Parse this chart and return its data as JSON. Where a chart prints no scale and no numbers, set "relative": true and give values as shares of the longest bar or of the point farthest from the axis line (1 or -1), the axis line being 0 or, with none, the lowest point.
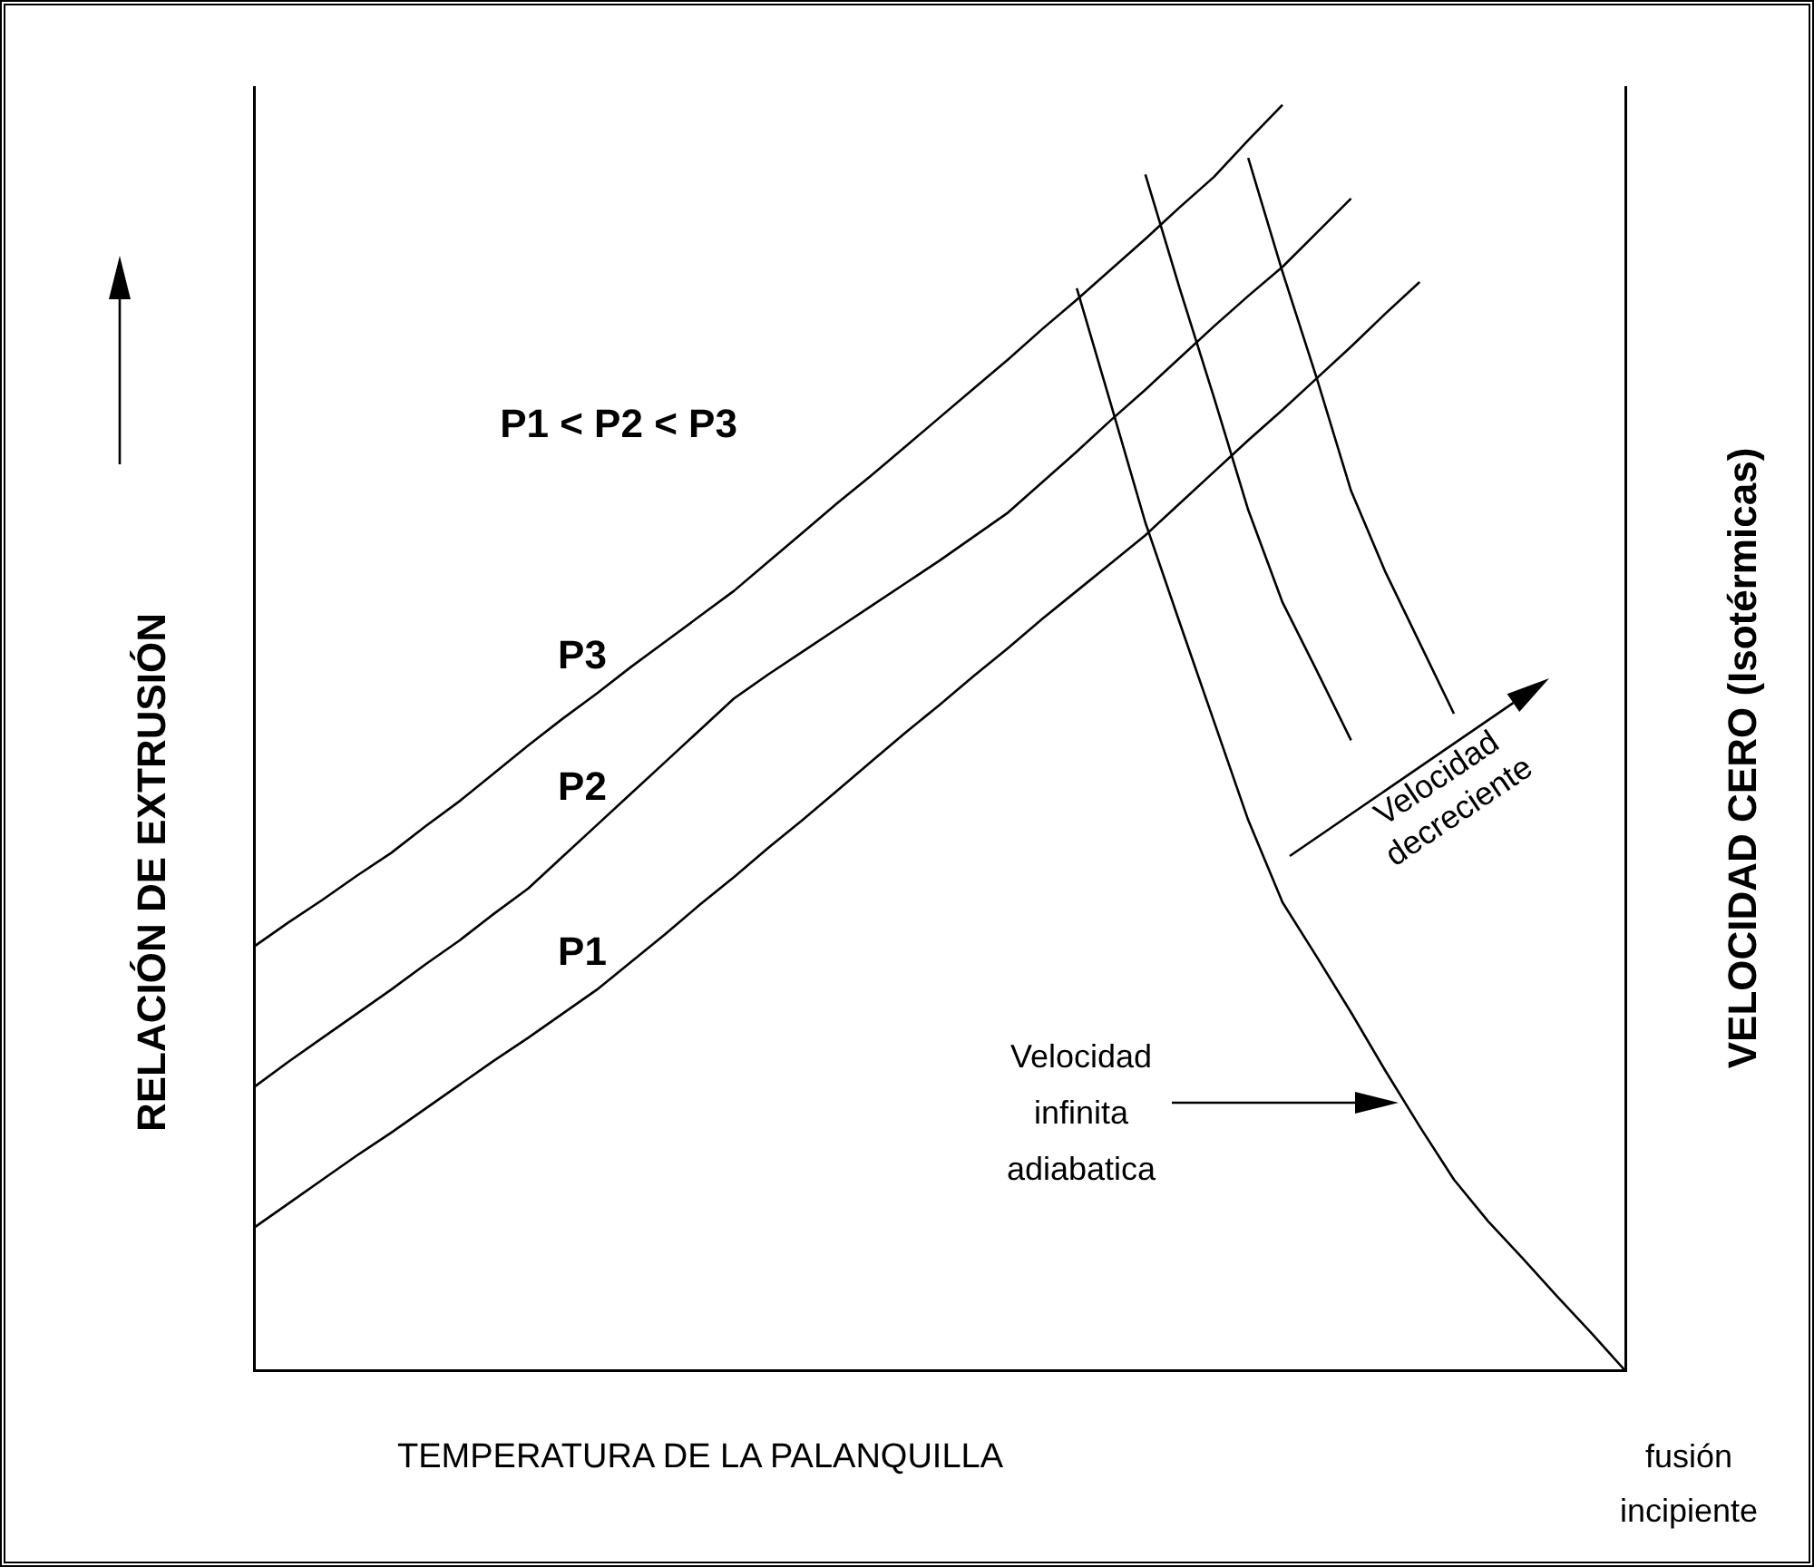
{
  "chart_data": {
    "type": "line",
    "relative": true,
    "xlabel": "TEMPERATURA DE LA PALANQUILLA",
    "ylabel": "RELACIÓN DE EXTRUSIÓN",
    "y2label": "VELOCIDAD CERO (Isotérmicas)",
    "grid": false,
    "legend": false,
    "marker": "none",
    "line_style": "solid",
    "categories": [
      null,
      null,
      null,
      null,
      null,
      null,
      null,
      null,
      null,
      null,
      null,
      null,
      null,
      null,
      null,
      null,
      null,
      null,
      null,
      null,
      null,
      null,
      null,
      null,
      null,
      null,
      null,
      null,
      null,
      null,
      null,
      null,
      null,
      null,
      null,
      null,
      null,
      null,
      null,
      null,
      null
    ],
    "series": [
      {
        "name": "P3",
        "color": "#000000",
        "values": [
          0.335,
          0.354,
          0.372,
          0.391,
          0.409,
          0.43,
          0.45,
          0.472,
          0.494,
          0.515,
          0.535,
          0.556,
          0.576,
          0.596,
          0.616,
          0.639,
          0.662,
          0.685,
          0.707,
          0.73,
          0.753,
          0.776,
          0.799,
          0.823,
          0.846,
          0.87,
          0.894,
          0.919,
          0.943,
          0.972,
          1.0,
          null,
          null,
          null,
          null,
          null,
          null,
          null,
          null,
          null,
          null
        ]
      },
      {
        "name": "P2",
        "color": "#000000",
        "values": [
          0.224,
          0.244,
          0.263,
          0.282,
          0.301,
          0.321,
          0.34,
          0.361,
          0.381,
          0.406,
          0.431,
          0.456,
          0.481,
          0.506,
          0.531,
          0.55,
          0.568,
          0.586,
          0.604,
          0.622,
          0.64,
          0.659,
          0.678,
          0.702,
          0.726,
          0.751,
          0.775,
          0.8,
          0.825,
          0.849,
          0.872,
          0.899,
          0.926,
          null,
          null,
          null,
          null,
          null,
          null,
          null,
          null
        ]
      },
      {
        "name": "P1",
        "color": "#000000",
        "values": [
          0.113,
          0.132,
          0.151,
          0.17,
          0.188,
          0.207,
          0.226,
          0.245,
          0.263,
          0.282,
          0.301,
          0.323,
          0.345,
          0.368,
          0.39,
          0.413,
          0.435,
          0.458,
          0.481,
          0.504,
          0.526,
          0.549,
          0.571,
          0.594,
          0.616,
          0.638,
          0.66,
          0.685,
          0.71,
          0.735,
          0.759,
          0.784,
          0.809,
          0.835,
          0.86,
          null,
          null,
          null,
          null,
          null,
          null
        ]
      },
      {
        "color": "#000000",
        "values": [
          null,
          null,
          null,
          null,
          null,
          null,
          null,
          null,
          null,
          null,
          null,
          null,
          null,
          null,
          null,
          null,
          null,
          null,
          null,
          null,
          null,
          null,
          null,
          null,
          0.855,
          0.763,
          0.67,
          0.591,
          0.513,
          0.435,
          0.37,
          0.327,
          0.283,
          0.237,
          0.193,
          0.151,
          0.118,
          0.089,
          0.059,
          0.03,
          0
        ]
      },
      {
        "color": "#000000",
        "values": [
          null,
          null,
          null,
          null,
          null,
          null,
          null,
          null,
          null,
          null,
          null,
          null,
          null,
          null,
          null,
          null,
          null,
          null,
          null,
          null,
          null,
          null,
          null,
          null,
          null,
          null,
          0.945,
          0.855,
          0.769,
          0.68,
          0.607,
          0.553,
          0.498,
          null,
          null,
          null,
          null,
          null,
          null,
          null,
          null
        ]
      },
      {
        "color": "#000000",
        "values": [
          null,
          null,
          null,
          null,
          null,
          null,
          null,
          null,
          null,
          null,
          null,
          null,
          null,
          null,
          null,
          null,
          null,
          null,
          null,
          null,
          null,
          null,
          null,
          null,
          null,
          null,
          null,
          null,
          null,
          0.958,
          0.868,
          0.784,
          0.695,
          0.631,
          0.575,
          0.519,
          null,
          null,
          null,
          null,
          null
        ]
      }
    ],
    "annotations": [
      "P1 < P2 < P3",
      "Velocidad decreciente",
      "Velocidad infinita adiabatica",
      "fusión incipiente"
    ]
  }
}
